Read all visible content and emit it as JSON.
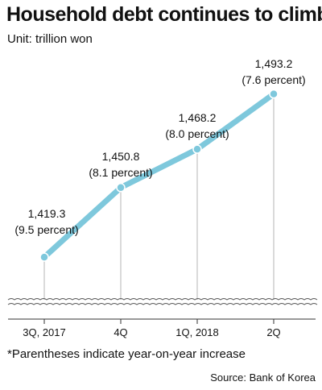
{
  "chart_data": {
    "type": "line",
    "title": "Household debt continues to climb",
    "subtitle": "Unit: trillion won",
    "categories": [
      "3Q, 2017",
      "4Q",
      "1Q, 2018",
      "2Q"
    ],
    "series": [
      {
        "values": [
          1419.3,
          1450.8,
          1468.2,
          1493.2
        ],
        "labels": [
          "1,419.3",
          "1,450.8",
          "1,468.2",
          "1,493.2"
        ],
        "changes": [
          "(9.5 percent)",
          "(8.1 percent)",
          "(8.0 percent)",
          "(7.6 percent)"
        ]
      }
    ],
    "ylim": [
      1400,
      1500
    ],
    "axis_break": true,
    "grid": false,
    "legend": "none",
    "line_color": "#7ec8dc",
    "footnote": "*Parentheses indicate year-on-year increase",
    "source": "Source: Bank of Korea"
  }
}
